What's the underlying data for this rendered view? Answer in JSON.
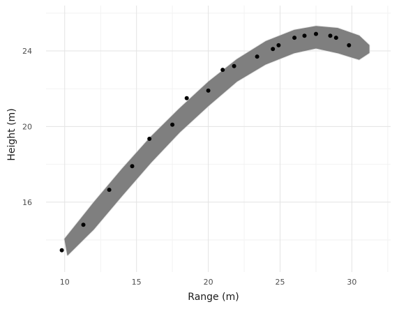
{
  "chart_data": {
    "type": "scatter",
    "title": "",
    "xlabel": "Range (m)",
    "ylabel": "Height (m)",
    "xlim": [
      8.7,
      32.7
    ],
    "ylim": [
      12.3,
      26.4
    ],
    "x_ticks": [
      10,
      15,
      20,
      25,
      30
    ],
    "y_ticks": [
      16,
      20,
      24
    ],
    "grid": true,
    "legend": "none",
    "band": {
      "description_free": true,
      "color": "#7f7f7f",
      "upper": [
        [
          10.0,
          14.05
        ],
        [
          12.0,
          15.95
        ],
        [
          14.0,
          17.75
        ],
        [
          16.0,
          19.45
        ],
        [
          18.0,
          20.95
        ],
        [
          20.0,
          22.35
        ],
        [
          22.0,
          23.55
        ],
        [
          24.0,
          24.5
        ],
        [
          26.0,
          25.1
        ],
        [
          27.5,
          25.3
        ],
        [
          29.0,
          25.2
        ],
        [
          30.5,
          24.8
        ],
        [
          31.2,
          24.3
        ]
      ],
      "lower": [
        [
          31.2,
          23.9
        ],
        [
          30.5,
          23.55
        ],
        [
          29.0,
          23.9
        ],
        [
          27.5,
          24.15
        ],
        [
          26.0,
          23.9
        ],
        [
          24.0,
          23.3
        ],
        [
          22.0,
          22.4
        ],
        [
          20.0,
          21.1
        ],
        [
          18.0,
          19.7
        ],
        [
          16.0,
          18.1
        ],
        [
          14.0,
          16.35
        ],
        [
          12.0,
          14.55
        ],
        [
          10.2,
          13.2
        ]
      ]
    },
    "points": {
      "color": "#000000",
      "x": [
        9.8,
        11.3,
        13.1,
        14.7,
        15.9,
        17.5,
        18.5,
        20.0,
        21.0,
        21.8,
        23.4,
        24.5,
        24.9,
        26.0,
        26.7,
        27.5,
        28.5,
        28.9,
        29.8
      ],
      "y": [
        13.45,
        14.8,
        16.65,
        17.9,
        19.35,
        20.1,
        21.5,
        21.9,
        23.0,
        23.2,
        23.7,
        24.1,
        24.3,
        24.7,
        24.8,
        24.9,
        24.8,
        24.7,
        24.3
      ]
    }
  }
}
